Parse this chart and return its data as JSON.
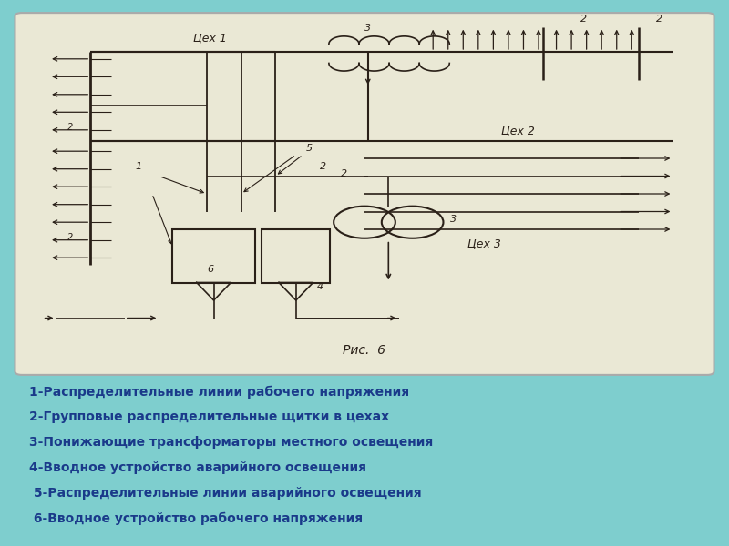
{
  "bg_color": "#7ecece",
  "diagram_bg": "#eae8d5",
  "line_color": "#2a2018",
  "text_color": "#1a3a8a",
  "legend_lines": [
    "1-Распределительные линии рабочего напряжения",
    "2-Групповые распределительные щитки в цехах",
    "3-Понижающие трансформаторы местного освещения",
    "4-Вводное устройство аварийного освещения",
    " 5-Распределительные линии аварийного освещения",
    " 6-Вводное устройство рабочего напряжения"
  ],
  "fig_caption": "Рис.  6"
}
